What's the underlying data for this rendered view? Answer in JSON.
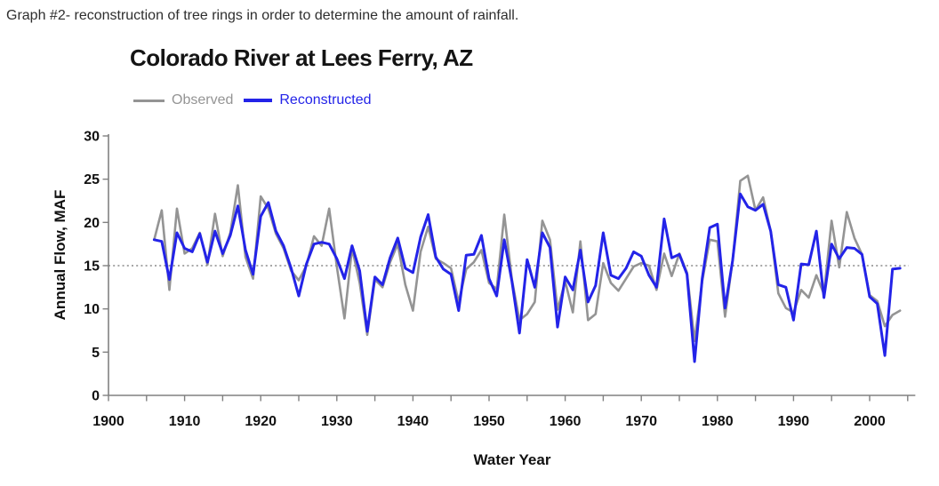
{
  "caption": "Graph #2- reconstruction of tree rings in order to determine the amount of rainfall.",
  "chart": {
    "title": "Colorado River at Lees Ferry, AZ",
    "x_axis_label": "Water Year",
    "y_axis_label": "Annual Flow, MAF",
    "legend": [
      {
        "label": "Observed",
        "color": "#949494"
      },
      {
        "label": "Reconstructed",
        "color": "#2323e8"
      }
    ]
  },
  "chart_data": {
    "type": "line",
    "title": "Colorado River at Lees Ferry, AZ",
    "xlabel": "Water Year",
    "ylabel": "Annual Flow, MAF",
    "xlim": [
      1900,
      2006
    ],
    "ylim": [
      0,
      30
    ],
    "x_ticks": [
      1900,
      1910,
      1920,
      1930,
      1940,
      1950,
      1960,
      1970,
      1980,
      1990,
      2000
    ],
    "x_minor_step": 5,
    "y_ticks": [
      0,
      5,
      10,
      15,
      20,
      25,
      30
    ],
    "grid": false,
    "legend_position": "top-left",
    "reference_line_y": 15,
    "x": [
      1906,
      1907,
      1908,
      1909,
      1910,
      1911,
      1912,
      1913,
      1914,
      1915,
      1916,
      1917,
      1918,
      1919,
      1920,
      1921,
      1922,
      1923,
      1924,
      1925,
      1926,
      1927,
      1928,
      1929,
      1930,
      1931,
      1932,
      1933,
      1934,
      1935,
      1936,
      1937,
      1938,
      1939,
      1940,
      1941,
      1942,
      1943,
      1944,
      1945,
      1946,
      1947,
      1948,
      1949,
      1950,
      1951,
      1952,
      1953,
      1954,
      1955,
      1956,
      1957,
      1958,
      1959,
      1960,
      1961,
      1962,
      1963,
      1964,
      1965,
      1966,
      1967,
      1968,
      1969,
      1970,
      1971,
      1972,
      1973,
      1974,
      1975,
      1976,
      1977,
      1978,
      1979,
      1980,
      1981,
      1982,
      1983,
      1984,
      1985,
      1986,
      1987,
      1988,
      1989,
      1990,
      1991,
      1992,
      1993,
      1994,
      1995,
      1996,
      1997,
      1998,
      1999,
      2000,
      2001,
      2002,
      2003,
      2004
    ],
    "series": [
      {
        "name": "Observed",
        "color": "#949494",
        "values": [
          18.0,
          21.4,
          12.2,
          21.6,
          16.4,
          17.0,
          18.8,
          15.1,
          21.0,
          16.1,
          18.8,
          24.3,
          16.0,
          13.5,
          23.0,
          21.6,
          18.7,
          17.0,
          14.4,
          13.3,
          15.0,
          18.4,
          17.3,
          21.6,
          14.9,
          8.9,
          17.0,
          13.0,
          7.0,
          13.4,
          12.5,
          15.4,
          17.5,
          12.8,
          9.8,
          16.6,
          19.5,
          15.8,
          15.3,
          14.7,
          10.8,
          14.6,
          15.4,
          16.8,
          13.0,
          12.3,
          20.9,
          13.4,
          8.7,
          9.4,
          10.8,
          20.2,
          18.0,
          9.9,
          13.2,
          9.6,
          17.8,
          8.7,
          9.4,
          15.3,
          13.0,
          12.1,
          13.5,
          14.9,
          15.3,
          15.0,
          12.2,
          16.4,
          13.8,
          16.4,
          14.2,
          6.3,
          13.2,
          18.0,
          17.8,
          9.1,
          15.6,
          24.8,
          25.4,
          21.4,
          22.9,
          19.0,
          11.8,
          10.1,
          9.6,
          12.2,
          11.3,
          13.9,
          11.7,
          20.2,
          14.8,
          21.2,
          18.2,
          16.3,
          11.6,
          10.9,
          8.0,
          9.3,
          9.8
        ]
      },
      {
        "name": "Reconstructed",
        "color": "#2323e8",
        "values": [
          18.0,
          17.8,
          13.4,
          18.8,
          17.0,
          16.6,
          18.7,
          15.4,
          19.0,
          16.4,
          18.5,
          21.9,
          16.8,
          14.0,
          20.7,
          22.3,
          19.0,
          17.3,
          14.7,
          11.5,
          15.2,
          17.5,
          17.7,
          17.5,
          15.8,
          13.5,
          17.3,
          14.4,
          7.4,
          13.7,
          12.8,
          15.9,
          18.2,
          14.7,
          14.2,
          18.3,
          20.9,
          16.0,
          14.6,
          14.0,
          9.8,
          16.2,
          16.3,
          18.5,
          13.5,
          11.5,
          18.0,
          13.2,
          7.2,
          15.7,
          12.5,
          18.8,
          17.1,
          7.9,
          13.7,
          12.2,
          16.8,
          10.8,
          12.7,
          18.8,
          13.9,
          13.5,
          14.7,
          16.6,
          16.1,
          13.9,
          12.5,
          20.4,
          15.9,
          16.3,
          14.0,
          3.9,
          13.5,
          19.4,
          19.8,
          10.1,
          15.6,
          23.3,
          21.8,
          21.4,
          22.1,
          19.0,
          12.8,
          12.5,
          8.7,
          15.2,
          15.1,
          19.0,
          11.3,
          17.5,
          15.8,
          17.1,
          17.0,
          16.3,
          11.4,
          10.6,
          4.6,
          14.6,
          14.7
        ]
      }
    ]
  }
}
